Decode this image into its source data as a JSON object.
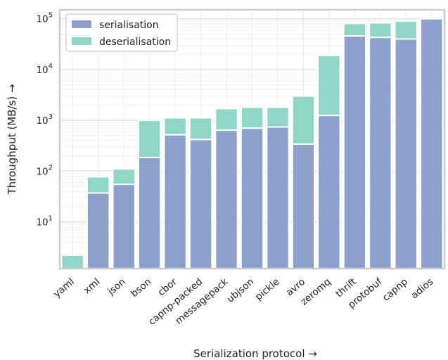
{
  "chart_data": {
    "type": "bar",
    "stacked": true,
    "xlabel": "Serialization protocol →",
    "ylabel": "Throughput (MB/s) →",
    "yscale": "log",
    "ylim": [
      1.2,
      150000
    ],
    "grid": true,
    "legend_position": "top-left",
    "categories": [
      "yaml",
      "xml",
      "json",
      "bson",
      "cbor",
      "capnp-packed",
      "messagepack",
      "ubjson",
      "pickle",
      "avro",
      "zeromq",
      "thrift",
      "protobuf",
      "capnp",
      "adios"
    ],
    "series": [
      {
        "name": "serialisation",
        "color": "#8da0cb",
        "values": [
          0,
          37,
          55,
          185,
          520,
          420,
          640,
          700,
          740,
          340,
          1250,
          46000,
          43000,
          40000,
          100000
        ]
      },
      {
        "name": "deserialisation",
        "color": "#8fd6c6",
        "values": [
          2.2,
          40,
          55,
          815,
          600,
          700,
          1060,
          1100,
          1060,
          2660,
          17750,
          35000,
          40000,
          50000,
          0
        ]
      }
    ],
    "y_ticks": [
      {
        "base": "10",
        "exp": "1",
        "value": 10
      },
      {
        "base": "10",
        "exp": "2",
        "value": 100
      },
      {
        "base": "10",
        "exp": "3",
        "value": 1000
      },
      {
        "base": "10",
        "exp": "4",
        "value": 10000
      },
      {
        "base": "10",
        "exp": "5",
        "value": 100000
      }
    ]
  }
}
